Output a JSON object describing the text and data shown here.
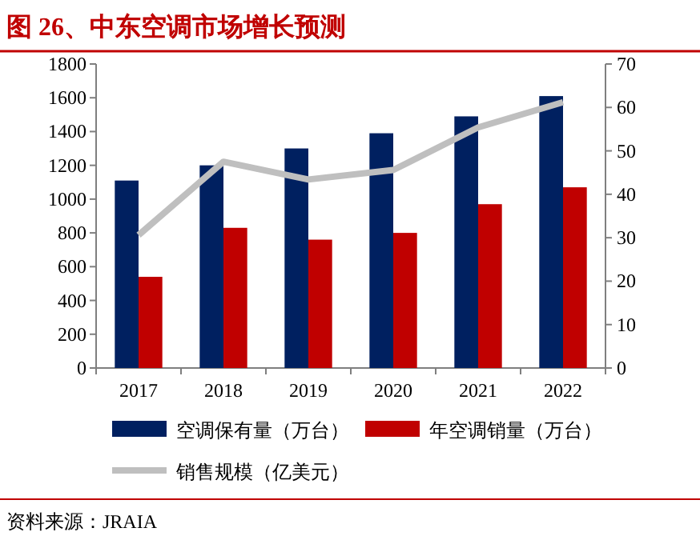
{
  "chart_data": {
    "type": "bar",
    "title": "图 26、中东空调市场增长预测",
    "categories": [
      "2017",
      "2018",
      "2019",
      "2020",
      "2021",
      "2022"
    ],
    "series": [
      {
        "name": "空调保有量（万台）",
        "color": "#002060",
        "values": [
          1110,
          1200,
          1300,
          1390,
          1490,
          1610
        ]
      },
      {
        "name": "年空调销量（万台）",
        "color": "#c00000",
        "values": [
          540,
          830,
          760,
          800,
          970,
          1070
        ]
      },
      {
        "name": "销售规模（亿美元）",
        "color": "#bfbfbf",
        "type": "line",
        "axis": "y2",
        "values": [
          30.6,
          47.5,
          43.4,
          45.6,
          55.4,
          61.2
        ]
      }
    ],
    "ylim": [
      0,
      1800
    ],
    "yticks": [
      0,
      200,
      400,
      600,
      800,
      1000,
      1200,
      1400,
      1600,
      1800
    ],
    "y2lim": [
      0,
      70
    ],
    "y2ticks": [
      0,
      10,
      20,
      30,
      40,
      50,
      60,
      70
    ],
    "legend": "bottom",
    "marker": "none",
    "annotations": [
      "资料来源：JRAIA"
    ]
  }
}
